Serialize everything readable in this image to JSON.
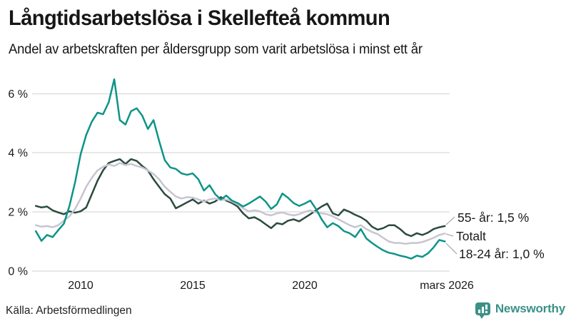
{
  "header": {
    "title": "Långtidsarbetslösa i Skellefteå kommun",
    "subtitle": "Andel av arbetskraften per åldersgrupp som varit arbetslösa i minst ett år"
  },
  "chart_data": {
    "type": "line",
    "title": "Långtidsarbetslösa i Skellefteå kommun",
    "subtitle": "Andel av arbetskraften per åldersgrupp som varit arbetslösa i minst ett år",
    "unit": "% av arbetskraften",
    "grid": "horizontal-only",
    "legend_position": "end-of-line-labels-right",
    "x_start": 2008.0,
    "x_step": 0.25,
    "xlim": [
      2007.9,
      2026.45
    ],
    "ylim": [
      0,
      6.75
    ],
    "y_ticks": [
      {
        "label": "6 %",
        "value": 6
      },
      {
        "label": "4 %",
        "value": 4
      },
      {
        "label": "2 %",
        "value": 2
      },
      {
        "label": "0 %",
        "value": 0
      }
    ],
    "x_ticks": [
      {
        "label": "2010",
        "year": 2010
      },
      {
        "label": "2015",
        "year": 2015
      },
      {
        "label": "2020",
        "year": 2020
      },
      {
        "label": "mars 2026",
        "year": 2026.17
      }
    ],
    "series": [
      {
        "name": "55- år",
        "end_label": "55- år: 1,5 %",
        "end_value": "1,5 %",
        "color": "#2b4a3e",
        "values": [
          2.2,
          2.15,
          2.18,
          2.05,
          1.98,
          1.92,
          2.02,
          1.97,
          2.02,
          2.15,
          2.6,
          3.05,
          3.4,
          3.65,
          3.72,
          3.78,
          3.62,
          3.78,
          3.72,
          3.55,
          3.4,
          3.1,
          2.85,
          2.6,
          2.45,
          2.12,
          2.22,
          2.32,
          2.42,
          2.28,
          2.38,
          2.28,
          2.35,
          2.5,
          2.38,
          2.3,
          2.18,
          1.95,
          1.78,
          1.82,
          1.72,
          1.58,
          1.45,
          1.62,
          1.58,
          1.7,
          1.75,
          1.68,
          1.8,
          1.92,
          2.05,
          2.18,
          2.28,
          1.95,
          1.88,
          2.08,
          2.0,
          1.9,
          1.82,
          1.7,
          1.5,
          1.4,
          1.45,
          1.55,
          1.55,
          1.42,
          1.25,
          1.18,
          1.28,
          1.22,
          1.3,
          1.42,
          1.48,
          1.52
        ]
      },
      {
        "name": "Totalt",
        "end_label": "Totalt",
        "end_value": "1,3 %",
        "color": "#c7c5d1",
        "values": [
          1.55,
          1.5,
          1.52,
          1.48,
          1.55,
          1.7,
          1.85,
          2.1,
          2.45,
          2.85,
          3.15,
          3.4,
          3.52,
          3.6,
          3.55,
          3.65,
          3.58,
          3.62,
          3.55,
          3.5,
          3.4,
          3.28,
          3.1,
          2.85,
          2.68,
          2.52,
          2.45,
          2.5,
          2.48,
          2.42,
          2.35,
          2.42,
          2.45,
          2.4,
          2.42,
          2.35,
          2.25,
          2.12,
          2.02,
          2.05,
          2.02,
          1.92,
          1.88,
          1.95,
          1.98,
          1.92,
          1.88,
          1.92,
          2.0,
          2.05,
          1.98,
          1.95,
          1.92,
          1.85,
          1.75,
          1.65,
          1.55,
          1.48,
          1.55,
          1.42,
          1.32,
          1.25,
          1.12,
          1.0,
          0.95,
          0.95,
          0.92,
          0.95,
          0.95,
          0.98,
          1.05,
          1.12,
          1.22,
          1.27
        ]
      },
      {
        "name": "18-24 år",
        "end_label": "18-24 år: 1,0 %",
        "end_value": "1,0 %",
        "color": "#0d9488",
        "values": [
          1.35,
          1.02,
          1.22,
          1.15,
          1.38,
          1.6,
          2.2,
          3.0,
          3.95,
          4.6,
          5.05,
          5.35,
          5.3,
          5.7,
          6.48,
          5.1,
          4.95,
          5.4,
          5.5,
          5.25,
          4.8,
          5.1,
          4.4,
          3.75,
          3.5,
          3.45,
          3.3,
          3.25,
          3.3,
          3.1,
          2.72,
          2.9,
          2.6,
          2.42,
          2.55,
          2.38,
          2.3,
          2.18,
          2.28,
          2.4,
          2.52,
          2.35,
          2.1,
          2.25,
          2.62,
          2.48,
          2.3,
          2.2,
          2.28,
          2.38,
          2.1,
          1.75,
          1.48,
          1.62,
          1.52,
          1.35,
          1.28,
          1.15,
          1.42,
          1.1,
          0.95,
          0.82,
          0.7,
          0.62,
          0.58,
          0.52,
          0.48,
          0.42,
          0.52,
          0.48,
          0.6,
          0.8,
          1.05,
          1.0
        ]
      }
    ]
  },
  "footer": {
    "source": "Källa: Arbetsförmedlingen",
    "brand_name": "Newsworthy",
    "brand_color": "#3b9187"
  }
}
